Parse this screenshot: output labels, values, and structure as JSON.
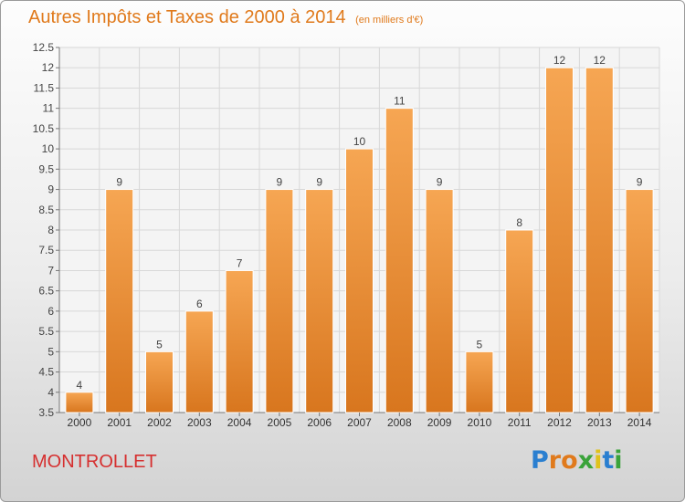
{
  "title": "Autres Impôts et Taxes de 2000 à 2014",
  "subtitle": "(en milliers d'€)",
  "commune": "MONTROLLET",
  "logo": {
    "text": "Proxiti",
    "letters": [
      {
        "ch": "P",
        "color": "#2a7fd0"
      },
      {
        "ch": "r",
        "color": "#e07a1c"
      },
      {
        "ch": "o",
        "color": "#e07a1c"
      },
      {
        "ch": "x",
        "color": "#3aa33a"
      },
      {
        "ch": "i",
        "color": "#e0c21c"
      },
      {
        "ch": "t",
        "color": "#2a7fd0"
      },
      {
        "ch": "i",
        "color": "#3aa33a"
      }
    ]
  },
  "colors": {
    "bar_top": "#f6a653",
    "bar_bottom": "#d8761e",
    "title": "#e07a1c",
    "commune": "#d62f2f",
    "grid": "#d8d8d8"
  },
  "chart_data": {
    "type": "bar",
    "categories": [
      "2000",
      "2001",
      "2002",
      "2003",
      "2004",
      "2005",
      "2006",
      "2007",
      "2008",
      "2009",
      "2010",
      "2011",
      "2012",
      "2013",
      "2014"
    ],
    "values": [
      4,
      9,
      5,
      6,
      7,
      9,
      9,
      10,
      11,
      9,
      5,
      8,
      12,
      12,
      9
    ],
    "data_labels": [
      "4",
      "9",
      "5",
      "6",
      "7",
      "9",
      "9",
      "10",
      "11",
      "9",
      "5",
      "8",
      "12",
      "12",
      "9"
    ],
    "yticks": [
      "3.5",
      "4",
      "4.5",
      "5",
      "5.5",
      "6",
      "6.5",
      "7",
      "7.5",
      "8",
      "8.5",
      "9",
      "9.5",
      "10",
      "10.5",
      "11",
      "11.5",
      "12",
      "12.5"
    ],
    "ylim": [
      3.5,
      12.5
    ],
    "grid": true,
    "xlabel": "",
    "ylabel": ""
  }
}
